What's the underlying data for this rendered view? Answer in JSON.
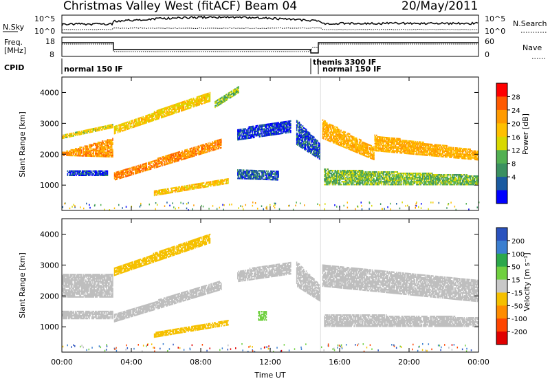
{
  "header": {
    "title": "Christmas Valley West (fitACF)",
    "beam": "Beam 04",
    "date": "20/May/2011"
  },
  "summary": {
    "nsky_label": "N.Sky",
    "nsky_ticks": [
      "10^5",
      "10^0"
    ],
    "nsearch_label": "N.Search",
    "freq_label": [
      "Freq.",
      "[MHz]"
    ],
    "freq_ticks": [
      "18",
      "8"
    ],
    "nave_label": "Nave",
    "nave_ticks": [
      "60",
      "0"
    ],
    "cpid_label": "CPID",
    "cpid_segments": [
      "normal 150 IF",
      "themis 3300 IF",
      "normal 150 IF"
    ]
  },
  "panels": {
    "power": {
      "ylabel": "Slant Range [km]",
      "cbar_label": "Power [dB]",
      "cbar_ticks": [
        "28",
        "24",
        "20",
        "16",
        "12",
        "8",
        "4"
      ],
      "cbar_colors": [
        "#ff0000",
        "#ff5a00",
        "#ff9a00",
        "#ffc000",
        "#d8d800",
        "#52b052",
        "#3a9060",
        "#1a5aa0",
        "#0000ff"
      ]
    },
    "velocity": {
      "ylabel": "Slant Range [km]",
      "cbar_label": "Velocity [m s⁻¹]",
      "cbar_ticks": [
        "200",
        "100",
        "50",
        "15",
        "-15",
        "-50",
        "-100",
        "-200"
      ],
      "cbar_colors": [
        "#2a52be",
        "#3b7fd0",
        "#2ba84a",
        "#70d040",
        "#c8c8c8",
        "#f5c000",
        "#ff8c00",
        "#ff4500",
        "#e00000"
      ],
      "ground_scatter_color": "#bebebe"
    }
  },
  "xaxis": {
    "label": "Time UT",
    "ticks": [
      "00:00",
      "04:00",
      "08:00",
      "12:00",
      "16:00",
      "20:00",
      "00:00"
    ]
  },
  "chart_data": {
    "type": "heatmap",
    "title": "Christmas Valley West (fitACF)",
    "subtitle": "Beam 04",
    "date": "20/May/2011",
    "xlabel": "Time UT",
    "ylabel": "Slant Range [km]",
    "xlim": [
      0,
      24
    ],
    "ylim": [
      180,
      4500
    ],
    "yticks": [
      1000,
      2000,
      3000,
      4000
    ],
    "cpid_changes_hours": [
      14.9,
      15.0
    ],
    "power_bands": [
      {
        "t0": 0.0,
        "t1": 2.9,
        "r0": 1950,
        "r1": 2050,
        "r0e": 1900,
        "r1e": 2500,
        "db": 24
      },
      {
        "t0": 0.0,
        "t1": 2.9,
        "r0": 2500,
        "r1": 2600,
        "r0e": 2850,
        "r1e": 2950,
        "db": 18
      },
      {
        "t0": 0.3,
        "t1": 2.6,
        "r0": 1300,
        "r1": 1450,
        "r0e": 1300,
        "r1e": 1450,
        "db": 6
      },
      {
        "t0": 3.0,
        "t1": 9.2,
        "r0": 1150,
        "r1": 1400,
        "r0e": 2200,
        "r1e": 2500,
        "db": 25
      },
      {
        "t0": 3.0,
        "t1": 8.5,
        "r0": 2650,
        "r1": 2900,
        "r0e": 3700,
        "r1e": 4000,
        "db": 19
      },
      {
        "t0": 5.3,
        "t1": 9.6,
        "r0": 650,
        "r1": 800,
        "r0e": 1050,
        "r1e": 1200,
        "db": 20
      },
      {
        "t0": 8.8,
        "t1": 10.2,
        "r0": 3500,
        "r1": 3700,
        "r0e": 4000,
        "r1e": 4200,
        "db": 14
      },
      {
        "t0": 10.1,
        "t1": 13.2,
        "r0": 2450,
        "r1": 2800,
        "r0e": 2700,
        "r1e": 3100,
        "db": 6
      },
      {
        "t0": 10.1,
        "t1": 12.5,
        "r0": 1200,
        "r1": 1500,
        "r0e": 1150,
        "r1e": 1450,
        "db": 8
      },
      {
        "t0": 13.5,
        "t1": 14.9,
        "r0": 2300,
        "r1": 3100,
        "r0e": 1800,
        "r1e": 2300,
        "db": 7
      },
      {
        "t0": 15.0,
        "t1": 18.0,
        "r0": 2500,
        "r1": 3100,
        "r0e": 1800,
        "r1e": 2200,
        "db": 22
      },
      {
        "t0": 18.0,
        "t1": 24.0,
        "r0": 2100,
        "r1": 2600,
        "r0e": 1800,
        "r1e": 2100,
        "db": 22
      },
      {
        "t0": 15.1,
        "t1": 24.0,
        "r0": 1000,
        "r1": 1500,
        "r0e": 1000,
        "r1e": 1300,
        "db": 14
      }
    ],
    "velocity_bands": [
      {
        "t0": 0.0,
        "t1": 2.9,
        "r0": 1950,
        "r1": 2700,
        "r0e": 1950,
        "r1e": 2700,
        "v": 0
      },
      {
        "t0": 0.0,
        "t1": 2.9,
        "r0": 1250,
        "r1": 1500,
        "r0e": 1250,
        "r1e": 1500,
        "v": 0
      },
      {
        "t0": 3.0,
        "t1": 9.2,
        "r0": 1150,
        "r1": 1400,
        "r0e": 2200,
        "r1e": 2500,
        "v": 0
      },
      {
        "t0": 3.0,
        "t1": 8.5,
        "r0": 2650,
        "r1": 2900,
        "r0e": 3700,
        "r1e": 4000,
        "v": -35
      },
      {
        "t0": 5.3,
        "t1": 9.6,
        "r0": 650,
        "r1": 800,
        "r0e": 1050,
        "r1e": 1200,
        "v": -35
      },
      {
        "t0": 10.1,
        "t1": 13.2,
        "r0": 2450,
        "r1": 2800,
        "r0e": 2700,
        "r1e": 3100,
        "v": 0
      },
      {
        "t0": 11.3,
        "t1": 11.8,
        "r0": 1200,
        "r1": 1500,
        "r0e": 1200,
        "r1e": 1500,
        "v": 40
      },
      {
        "t0": 13.5,
        "t1": 14.9,
        "r0": 2300,
        "r1": 3100,
        "r0e": 1800,
        "r1e": 2300,
        "v": 0
      },
      {
        "t0": 15.0,
        "t1": 24.0,
        "r0": 2300,
        "r1": 3000,
        "r0e": 1800,
        "r1e": 2500,
        "v": 0
      },
      {
        "t0": 15.1,
        "t1": 24.0,
        "r0": 1000,
        "r1": 1400,
        "r0e": 1000,
        "r1e": 1300,
        "v": 0
      }
    ]
  }
}
